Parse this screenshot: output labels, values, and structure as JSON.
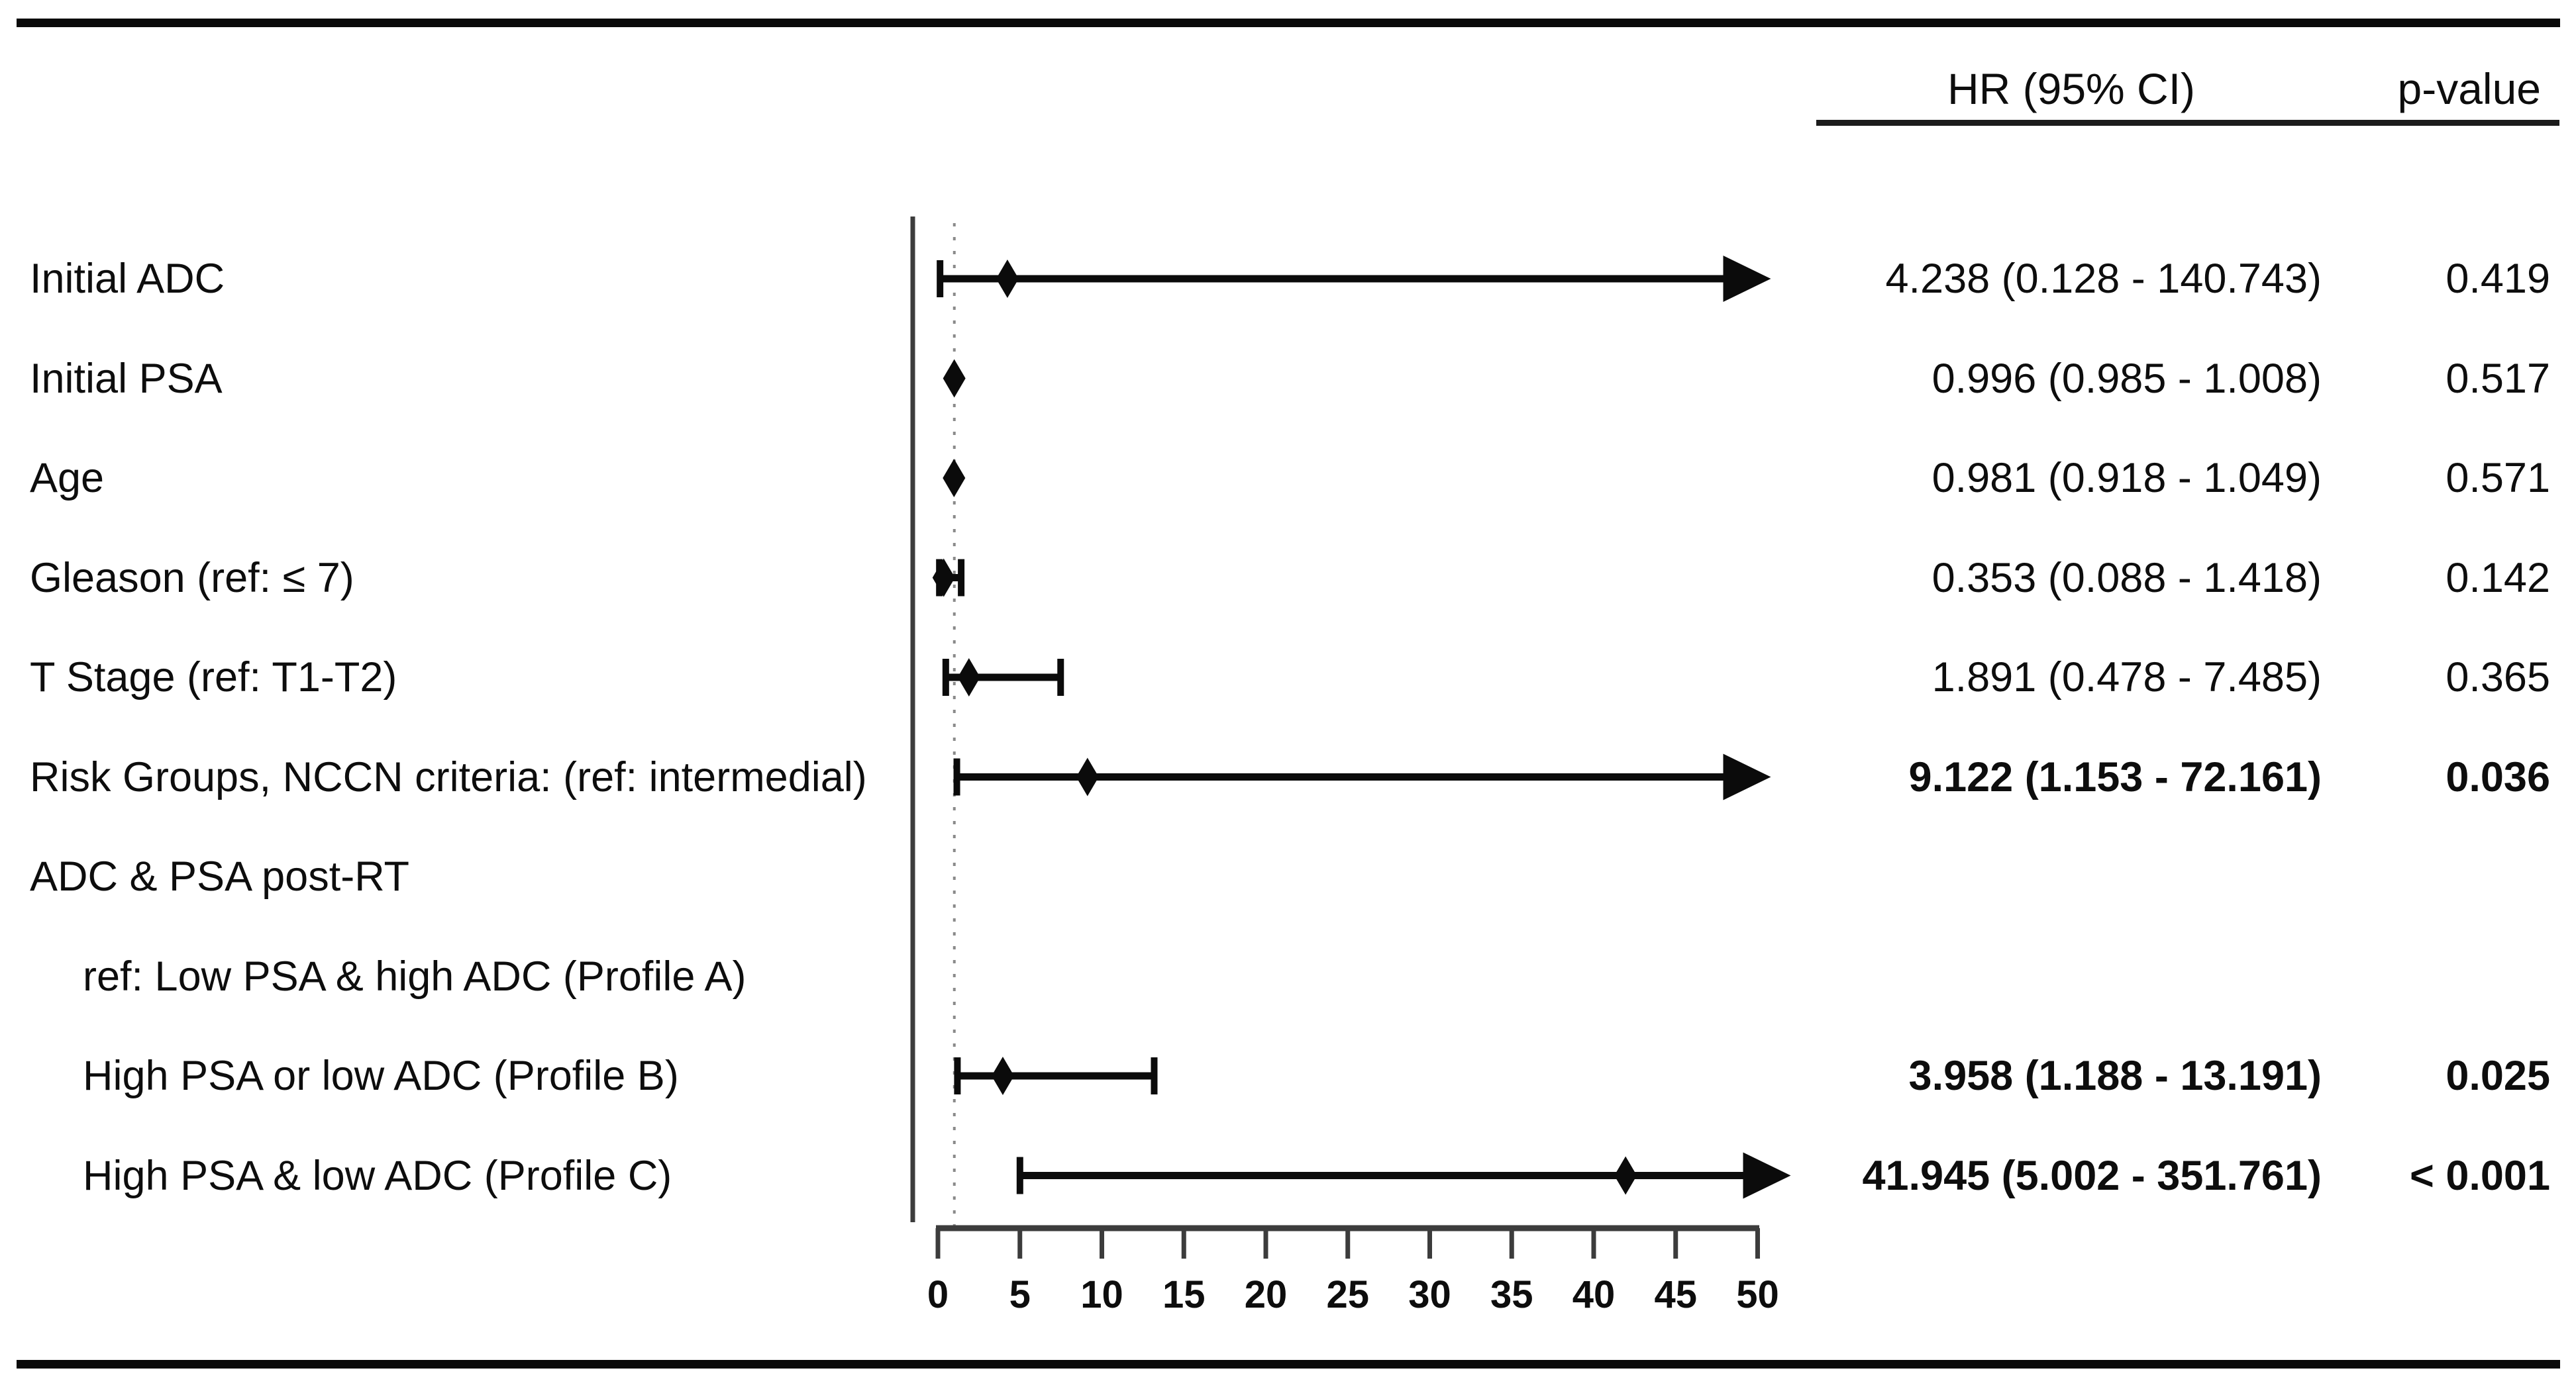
{
  "header": {
    "hr_ci": "HR (95% CI)",
    "p_value": "p-value"
  },
  "colors": {
    "ink": "#0d0d0d",
    "axis": "#3c3c3c",
    "ref_line": "#8a8a8a",
    "marker": "#0b0b0b"
  },
  "chart_data": {
    "type": "forest",
    "title": "",
    "xlabel": "",
    "xlim": [
      0,
      50
    ],
    "x_ticks": [
      0,
      5,
      10,
      15,
      20,
      25,
      30,
      35,
      40,
      45,
      50
    ],
    "reference_line_hr": 1,
    "arrow_clip_max": 50,
    "legend": "none",
    "grid": false,
    "rows": [
      {
        "label": "Initial ADC",
        "indent": false,
        "hr": 4.238,
        "ci_low": 0.128,
        "ci_high": 140.743,
        "hr_text": "4.238 (0.128 - 140.743)",
        "p_text": "0.419",
        "bold": false
      },
      {
        "label": "Initial PSA",
        "indent": false,
        "hr": 0.996,
        "ci_low": 0.985,
        "ci_high": 1.008,
        "hr_text": "0.996 (0.985 - 1.008)",
        "p_text": "0.517",
        "bold": false
      },
      {
        "label": "Age",
        "indent": false,
        "hr": 0.981,
        "ci_low": 0.918,
        "ci_high": 1.049,
        "hr_text": "0.981 (0.918 - 1.049)",
        "p_text": "0.571",
        "bold": false
      },
      {
        "label": "Gleason (ref: ≤ 7)",
        "indent": false,
        "hr": 0.353,
        "ci_low": 0.088,
        "ci_high": 1.418,
        "hr_text": "0.353 (0.088 - 1.418)",
        "p_text": "0.142",
        "bold": false
      },
      {
        "label": "T Stage (ref: T1-T2)",
        "indent": false,
        "hr": 1.891,
        "ci_low": 0.478,
        "ci_high": 7.485,
        "hr_text": "1.891 (0.478 - 7.485)",
        "p_text": "0.365",
        "bold": false
      },
      {
        "label": "Risk Groups, NCCN criteria: (ref: intermedial)",
        "indent": false,
        "hr": 9.122,
        "ci_low": 1.153,
        "ci_high": 72.161,
        "hr_text": "9.122 (1.153 - 72.161)",
        "p_text": "0.036",
        "bold": true
      },
      {
        "label": "ADC & PSA post-RT",
        "indent": false,
        "bold": false
      },
      {
        "label": "ref: Low PSA & high ADC (Profile A)",
        "indent": true,
        "bold": false
      },
      {
        "label": "High PSA or low ADC (Profile B)",
        "indent": true,
        "hr": 3.958,
        "ci_low": 1.188,
        "ci_high": 13.191,
        "hr_text": "3.958 (1.188 - 13.191)",
        "p_text": "0.025",
        "bold": true
      },
      {
        "label": "High PSA & low ADC (Profile C)",
        "indent": true,
        "hr": 41.945,
        "ci_low": 5.002,
        "ci_high": 351.761,
        "hr_text": "41.945 (5.002 - 351.761)",
        "p_text": "< 0.001",
        "bold": true
      }
    ]
  }
}
